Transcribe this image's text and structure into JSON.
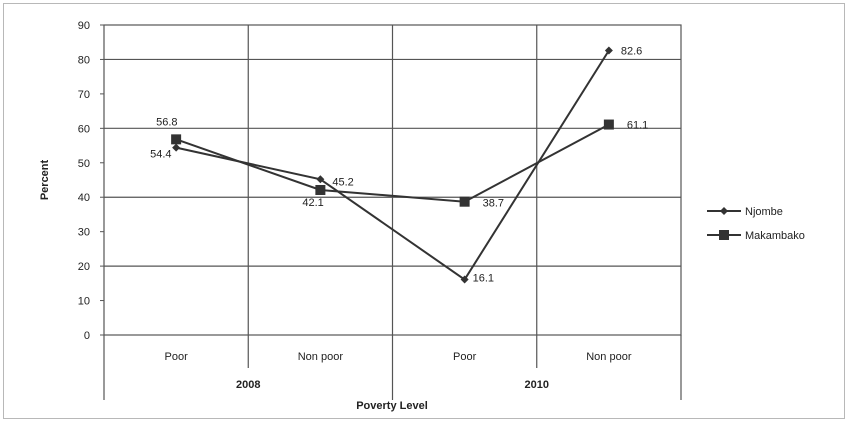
{
  "chart_data": {
    "type": "line",
    "title": "",
    "xlabel": "Poverty Level",
    "ylabel": "Percent",
    "ylim": [
      0,
      90
    ],
    "yticks": [
      0,
      10,
      20,
      30,
      40,
      50,
      60,
      70,
      80,
      90
    ],
    "categories": [
      "Poor",
      "Non poor",
      "Poor",
      "Non poor"
    ],
    "groups": [
      {
        "label": "2008",
        "span": [
          0,
          1
        ]
      },
      {
        "label": "2010",
        "span": [
          2,
          3
        ]
      }
    ],
    "series": [
      {
        "name": "Njombe",
        "marker": "diamond",
        "values": [
          54.4,
          45.2,
          16.1,
          82.6
        ],
        "labels": [
          "54.4",
          "45.2",
          "16.1",
          "82.6"
        ]
      },
      {
        "name": "Makambako",
        "marker": "square",
        "values": [
          56.8,
          42.1,
          38.7,
          61.1
        ],
        "labels": [
          "56.8",
          "42.1",
          "38.7",
          "61.1"
        ]
      }
    ],
    "grid": true,
    "legend_position": "right",
    "line_color": "#333333"
  }
}
